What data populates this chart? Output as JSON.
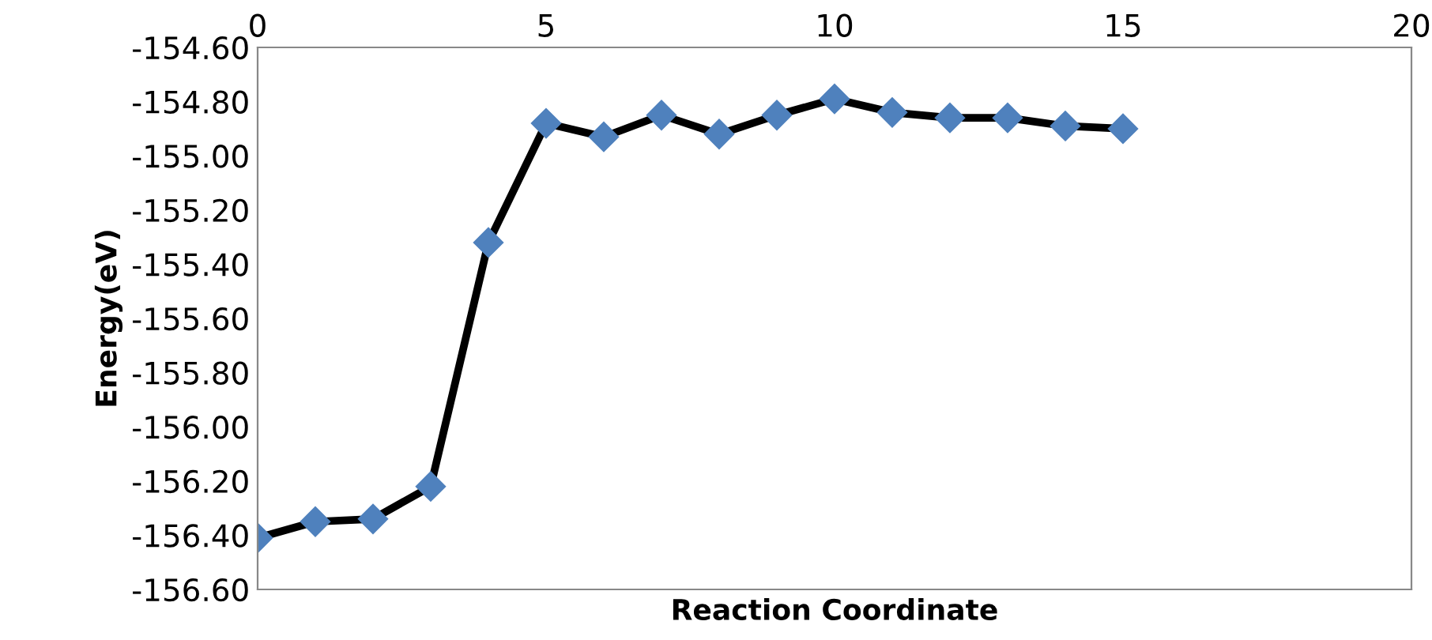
{
  "chart_data": {
    "type": "line",
    "xlabel": "Reaction Coordinate",
    "ylabel": "Energy(eV)",
    "x": [
      0,
      1,
      2,
      3,
      4,
      5,
      6,
      7,
      8,
      9,
      10,
      11,
      12,
      13,
      14,
      15
    ],
    "series": [
      {
        "color": "#4f81bd",
        "values": [
          -156.41,
          -156.35,
          -156.34,
          -156.22,
          -155.32,
          -154.88,
          -154.93,
          -154.85,
          -154.92,
          -154.85,
          -154.79,
          -154.84,
          -154.86,
          -154.86,
          -154.89,
          -154.9
        ]
      }
    ],
    "marker": "diamond",
    "line_style": "solid",
    "grid": false,
    "xlim": [
      0,
      20
    ],
    "xticks": [
      0,
      5,
      10,
      15,
      20
    ],
    "ylim": [
      -156.6,
      -154.6
    ],
    "yticks": [
      {
        "value": -156.6,
        "label": "-156.60"
      },
      {
        "value": -156.4,
        "label": "-156.40"
      },
      {
        "value": -156.2,
        "label": "-156.20"
      },
      {
        "value": -156.0,
        "label": "-156.00"
      },
      {
        "value": -155.8,
        "label": "-155.80"
      },
      {
        "value": -155.6,
        "label": "-155.60"
      },
      {
        "value": -155.4,
        "label": "-155.40"
      },
      {
        "value": -155.2,
        "label": "-155.20"
      },
      {
        "value": -155.0,
        "label": "-155.00"
      },
      {
        "value": -154.8,
        "label": "-154.80"
      },
      {
        "value": -154.6,
        "label": "-154.60"
      }
    ]
  }
}
